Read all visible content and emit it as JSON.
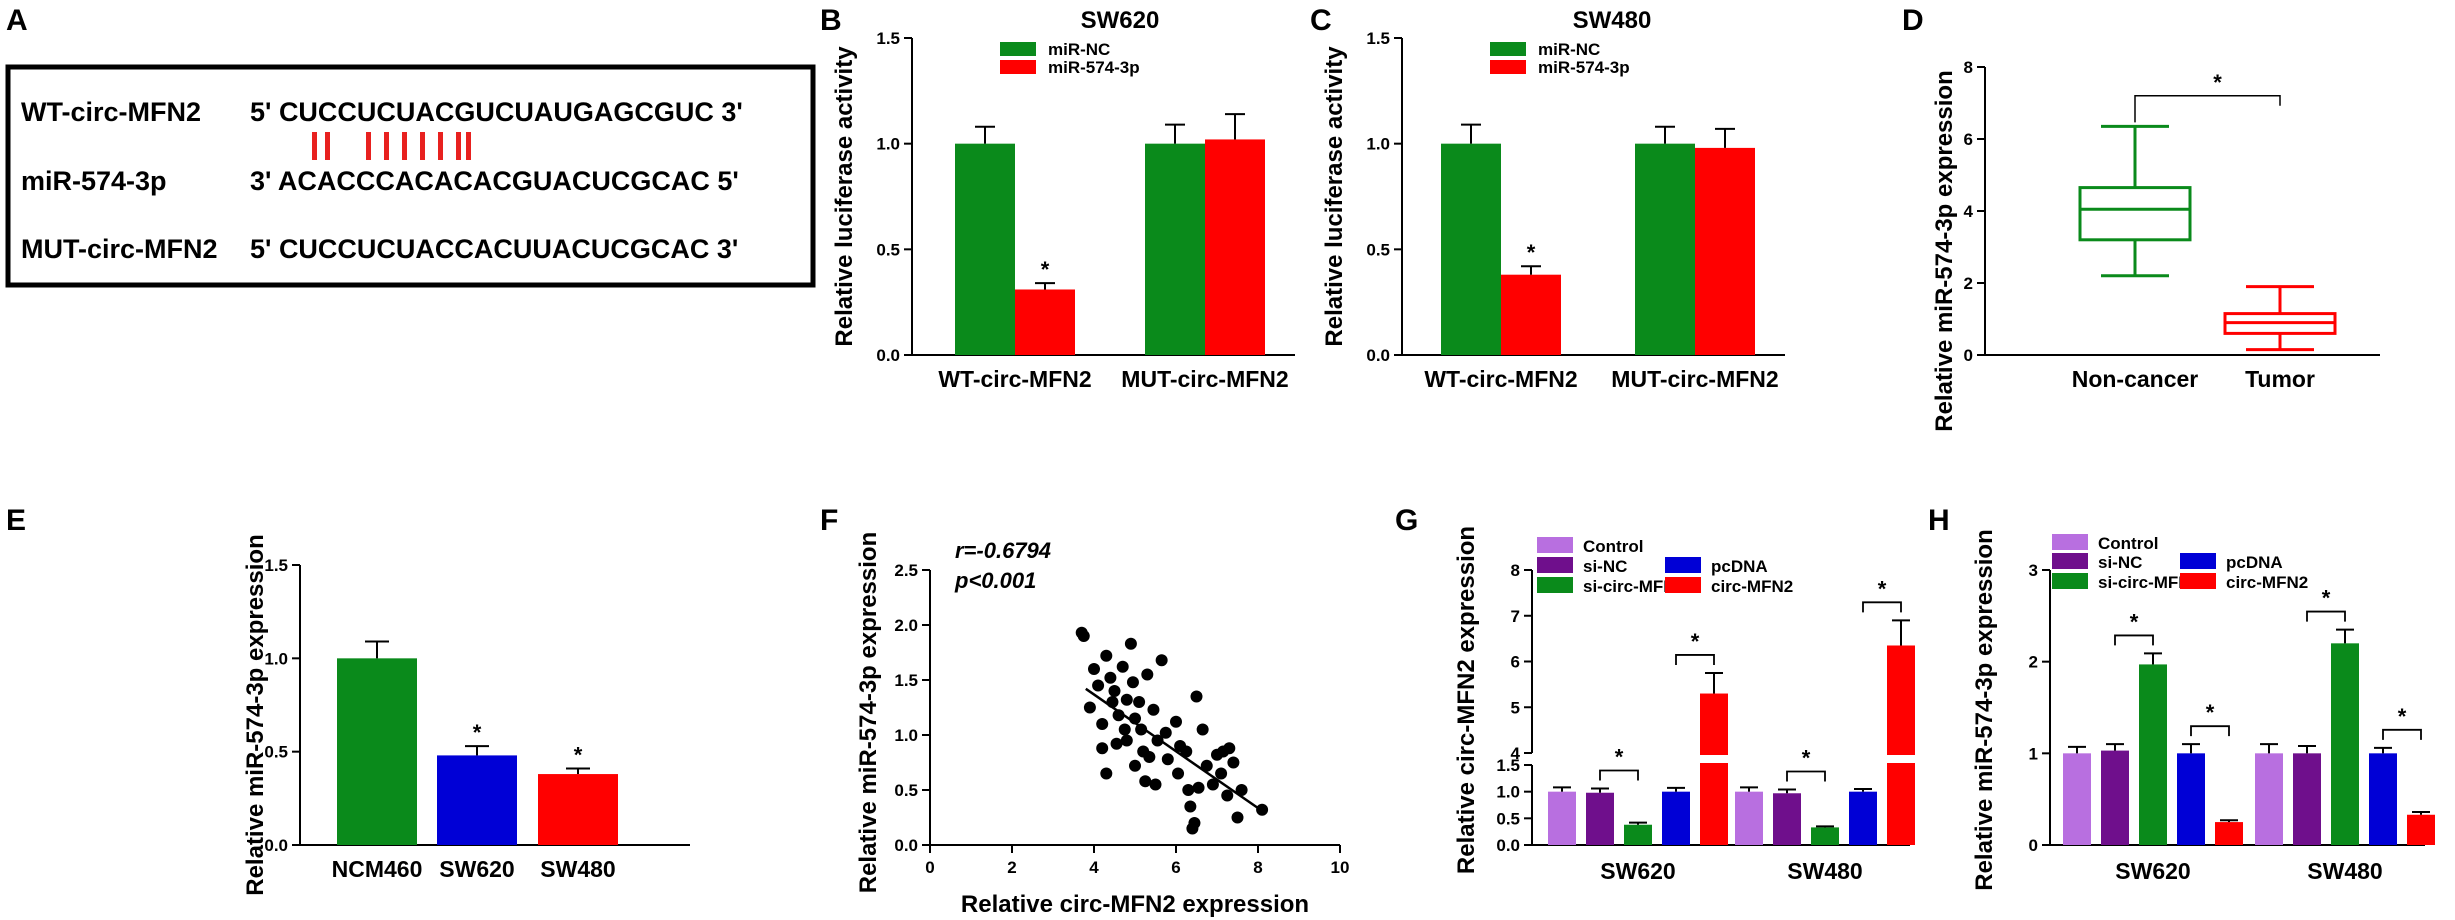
{
  "panel_labels": [
    "A",
    "B",
    "C",
    "D",
    "E",
    "F",
    "G",
    "H"
  ],
  "panelA": {
    "rows": [
      {
        "name": "WT-circ-MFN2",
        "seq": "5' CUCCUCUACGUCUAUGAGCGUC 3'"
      },
      {
        "name": "miR-574-3p",
        "seq": "3' ACACCCACACACGUACUCGCAC 5'"
      },
      {
        "name": "MUT-circ-MFN2",
        "seq": "5' CUCCUCUACCACUUACUCGCAC 3'"
      }
    ],
    "pairing_mark_color": "#e8211f"
  },
  "colors": {
    "green": "#0a8a1b",
    "red": "#ff0000",
    "blue": "#0000d6",
    "purple": "#6f0f8c",
    "violet": "#b86fe0"
  },
  "chart_data": [
    {
      "id": "B",
      "type": "bar",
      "title": "SW620",
      "ylabel": "Relative luciferase activity",
      "xlabel": "",
      "ylim": [
        0,
        1.5
      ],
      "yticks": [
        "0.0",
        "0.5",
        "1.0",
        "1.5"
      ],
      "categories": [
        "WT-circ-MFN2",
        "MUT-circ-MFN2"
      ],
      "series": [
        {
          "name": "miR-NC",
          "color": "#0a8a1b",
          "values": [
            1.0,
            1.0
          ],
          "errors": [
            0.08,
            0.09
          ]
        },
        {
          "name": "miR-574-3p",
          "color": "#ff0000",
          "values": [
            0.31,
            1.02
          ],
          "errors": [
            0.03,
            0.12
          ]
        }
      ],
      "legend": "top-left",
      "annotations": [
        {
          "text": "*",
          "category": 0,
          "series": 1
        }
      ]
    },
    {
      "id": "C",
      "type": "bar",
      "title": "SW480",
      "ylabel": "Relative luciferase activity",
      "xlabel": "",
      "ylim": [
        0,
        1.5
      ],
      "yticks": [
        "0.0",
        "0.5",
        "1.0",
        "1.5"
      ],
      "categories": [
        "WT-circ-MFN2",
        "MUT-circ-MFN2"
      ],
      "series": [
        {
          "name": "miR-NC",
          "color": "#0a8a1b",
          "values": [
            1.0,
            1.0
          ],
          "errors": [
            0.09,
            0.08
          ]
        },
        {
          "name": "miR-574-3p",
          "color": "#ff0000",
          "values": [
            0.38,
            0.98
          ],
          "errors": [
            0.04,
            0.09
          ]
        }
      ],
      "legend": "top-left",
      "annotations": [
        {
          "text": "*",
          "category": 0,
          "series": 1
        }
      ]
    },
    {
      "id": "D",
      "type": "box",
      "ylabel": "Relative miR-574-3p expression",
      "xlabel": "",
      "ylim": [
        0,
        8
      ],
      "yticks": [
        "0",
        "2",
        "4",
        "6",
        "8"
      ],
      "categories": [
        "Non-cancer",
        "Tumor"
      ],
      "boxes": [
        {
          "min": 2.2,
          "q1": 3.2,
          "median": 4.05,
          "q3": 4.65,
          "max": 6.35,
          "color": "#0a8a1b"
        },
        {
          "min": 0.15,
          "q1": 0.6,
          "median": 0.9,
          "q3": 1.15,
          "max": 1.9,
          "color": "#ff0000"
        }
      ],
      "significance": "*"
    },
    {
      "id": "E",
      "type": "bar",
      "ylabel": "Relative miR-574-3p expression",
      "xlabel": "",
      "ylim": [
        0,
        1.5
      ],
      "yticks": [
        "0.0",
        "0.5",
        "1.0",
        "1.5"
      ],
      "categories": [
        "NCM460",
        "SW620",
        "SW480"
      ],
      "values": [
        1.0,
        0.48,
        0.38
      ],
      "errors": [
        0.09,
        0.05,
        0.03
      ],
      "colors": [
        "#0a8a1b",
        "#0000d6",
        "#ff0000"
      ],
      "annotations": [
        "",
        "*",
        "*"
      ]
    },
    {
      "id": "F",
      "type": "scatter",
      "ylabel": "Relative miR-574-3p expression",
      "xlabel": "Relative circ-MFN2 expression",
      "xlim": [
        0,
        10
      ],
      "ylim": [
        0,
        2.5
      ],
      "xticks": [
        "0",
        "2",
        "4",
        "6",
        "8",
        "10"
      ],
      "yticks": [
        "0.0",
        "0.5",
        "1.0",
        "1.5",
        "2.0",
        "2.5"
      ],
      "r_text": "r=-0.6794",
      "p_text": "p<0.001",
      "fit": {
        "x": [
          3.8,
          8.1
        ],
        "y": [
          1.42,
          0.31
        ]
      },
      "points": [
        [
          3.7,
          1.93
        ],
        [
          3.75,
          1.9
        ],
        [
          3.9,
          1.25
        ],
        [
          4.0,
          1.6
        ],
        [
          4.1,
          1.45
        ],
        [
          4.2,
          1.1
        ],
        [
          4.2,
          0.88
        ],
        [
          4.3,
          0.65
        ],
        [
          4.3,
          1.72
        ],
        [
          4.4,
          1.52
        ],
        [
          4.45,
          1.3
        ],
        [
          4.5,
          1.4
        ],
        [
          4.55,
          0.92
        ],
        [
          4.6,
          1.18
        ],
        [
          4.7,
          1.62
        ],
        [
          4.75,
          1.05
        ],
        [
          4.8,
          0.95
        ],
        [
          4.8,
          1.32
        ],
        [
          4.9,
          1.83
        ],
        [
          4.95,
          1.48
        ],
        [
          5.0,
          0.72
        ],
        [
          5.0,
          1.15
        ],
        [
          5.1,
          1.3
        ],
        [
          5.15,
          1.05
        ],
        [
          5.2,
          0.85
        ],
        [
          5.25,
          0.58
        ],
        [
          5.3,
          1.55
        ],
        [
          5.35,
          0.8
        ],
        [
          5.45,
          1.23
        ],
        [
          5.5,
          0.55
        ],
        [
          5.55,
          0.95
        ],
        [
          5.65,
          1.68
        ],
        [
          5.75,
          1.02
        ],
        [
          5.8,
          0.78
        ],
        [
          6.0,
          1.12
        ],
        [
          6.05,
          0.65
        ],
        [
          6.1,
          0.9
        ],
        [
          6.25,
          0.85
        ],
        [
          6.3,
          0.5
        ],
        [
          6.35,
          0.35
        ],
        [
          6.4,
          0.15
        ],
        [
          6.45,
          0.2
        ],
        [
          6.5,
          1.35
        ],
        [
          6.55,
          0.52
        ],
        [
          6.65,
          1.05
        ],
        [
          6.75,
          0.72
        ],
        [
          6.9,
          0.55
        ],
        [
          7.0,
          0.82
        ],
        [
          7.1,
          0.65
        ],
        [
          7.15,
          0.85
        ],
        [
          7.25,
          0.45
        ],
        [
          7.3,
          0.88
        ],
        [
          7.4,
          0.75
        ],
        [
          7.5,
          0.25
        ],
        [
          7.6,
          0.5
        ],
        [
          8.1,
          0.32
        ]
      ]
    },
    {
      "id": "G",
      "type": "bar",
      "ylabel": "Relative circ-MFN2 expression",
      "xlabel": "",
      "axis_break": {
        "lower": [
          0,
          1.5
        ],
        "upper": [
          4,
          8
        ]
      },
      "yticks_lower": [
        "0.0",
        "0.5",
        "1.0",
        "1.5"
      ],
      "yticks_upper": [
        "4",
        "5",
        "6",
        "7",
        "8"
      ],
      "categories": [
        "SW620",
        "SW480"
      ],
      "series": [
        {
          "name": "Control",
          "color": "#b86fe0",
          "values": [
            1.0,
            1.0
          ],
          "errors": [
            0.08,
            0.08
          ]
        },
        {
          "name": "si-NC",
          "color": "#6f0f8c",
          "values": [
            0.98,
            0.97
          ],
          "errors": [
            0.08,
            0.07
          ]
        },
        {
          "name": "si-circ-MFN2",
          "color": "#0a8a1b",
          "values": [
            0.38,
            0.33
          ],
          "errors": [
            0.04,
            0.02
          ]
        },
        {
          "name": "pcDNA",
          "color": "#0000d6",
          "values": [
            1.0,
            1.0
          ],
          "errors": [
            0.07,
            0.05
          ]
        },
        {
          "name": "circ-MFN2",
          "color": "#ff0000",
          "values": [
            5.3,
            6.35
          ],
          "errors": [
            0.45,
            0.55
          ]
        }
      ],
      "brackets": [
        {
          "category": 0,
          "from": 1,
          "to": 2,
          "text": "*"
        },
        {
          "category": 0,
          "from": 3,
          "to": 4,
          "text": "*"
        },
        {
          "category": 1,
          "from": 1,
          "to": 2,
          "text": "*"
        },
        {
          "category": 1,
          "from": 3,
          "to": 4,
          "text": "*"
        }
      ]
    },
    {
      "id": "H",
      "type": "bar",
      "ylabel": "Relative miR-574-3p expression",
      "xlabel": "",
      "ylim": [
        0,
        3
      ],
      "yticks": [
        "0",
        "1",
        "2",
        "3"
      ],
      "categories": [
        "SW620",
        "SW480"
      ],
      "series": [
        {
          "name": "Control",
          "color": "#b86fe0",
          "values": [
            1.0,
            1.0
          ],
          "errors": [
            0.07,
            0.1
          ]
        },
        {
          "name": "si-NC",
          "color": "#6f0f8c",
          "values": [
            1.03,
            1.0
          ],
          "errors": [
            0.07,
            0.08
          ]
        },
        {
          "name": "si-circ-MFN2",
          "color": "#0a8a1b",
          "values": [
            1.97,
            2.2
          ],
          "errors": [
            0.12,
            0.15
          ]
        },
        {
          "name": "pcDNA",
          "color": "#0000d6",
          "values": [
            1.0,
            1.0
          ],
          "errors": [
            0.1,
            0.06
          ]
        },
        {
          "name": "circ-MFN2",
          "color": "#ff0000",
          "values": [
            0.25,
            0.33
          ],
          "errors": [
            0.02,
            0.03
          ]
        }
      ],
      "brackets": [
        {
          "category": 0,
          "from": 1,
          "to": 2,
          "text": "*"
        },
        {
          "category": 0,
          "from": 3,
          "to": 4,
          "text": "*"
        },
        {
          "category": 1,
          "from": 1,
          "to": 2,
          "text": "*"
        },
        {
          "category": 1,
          "from": 3,
          "to": 4,
          "text": "*"
        }
      ]
    }
  ]
}
